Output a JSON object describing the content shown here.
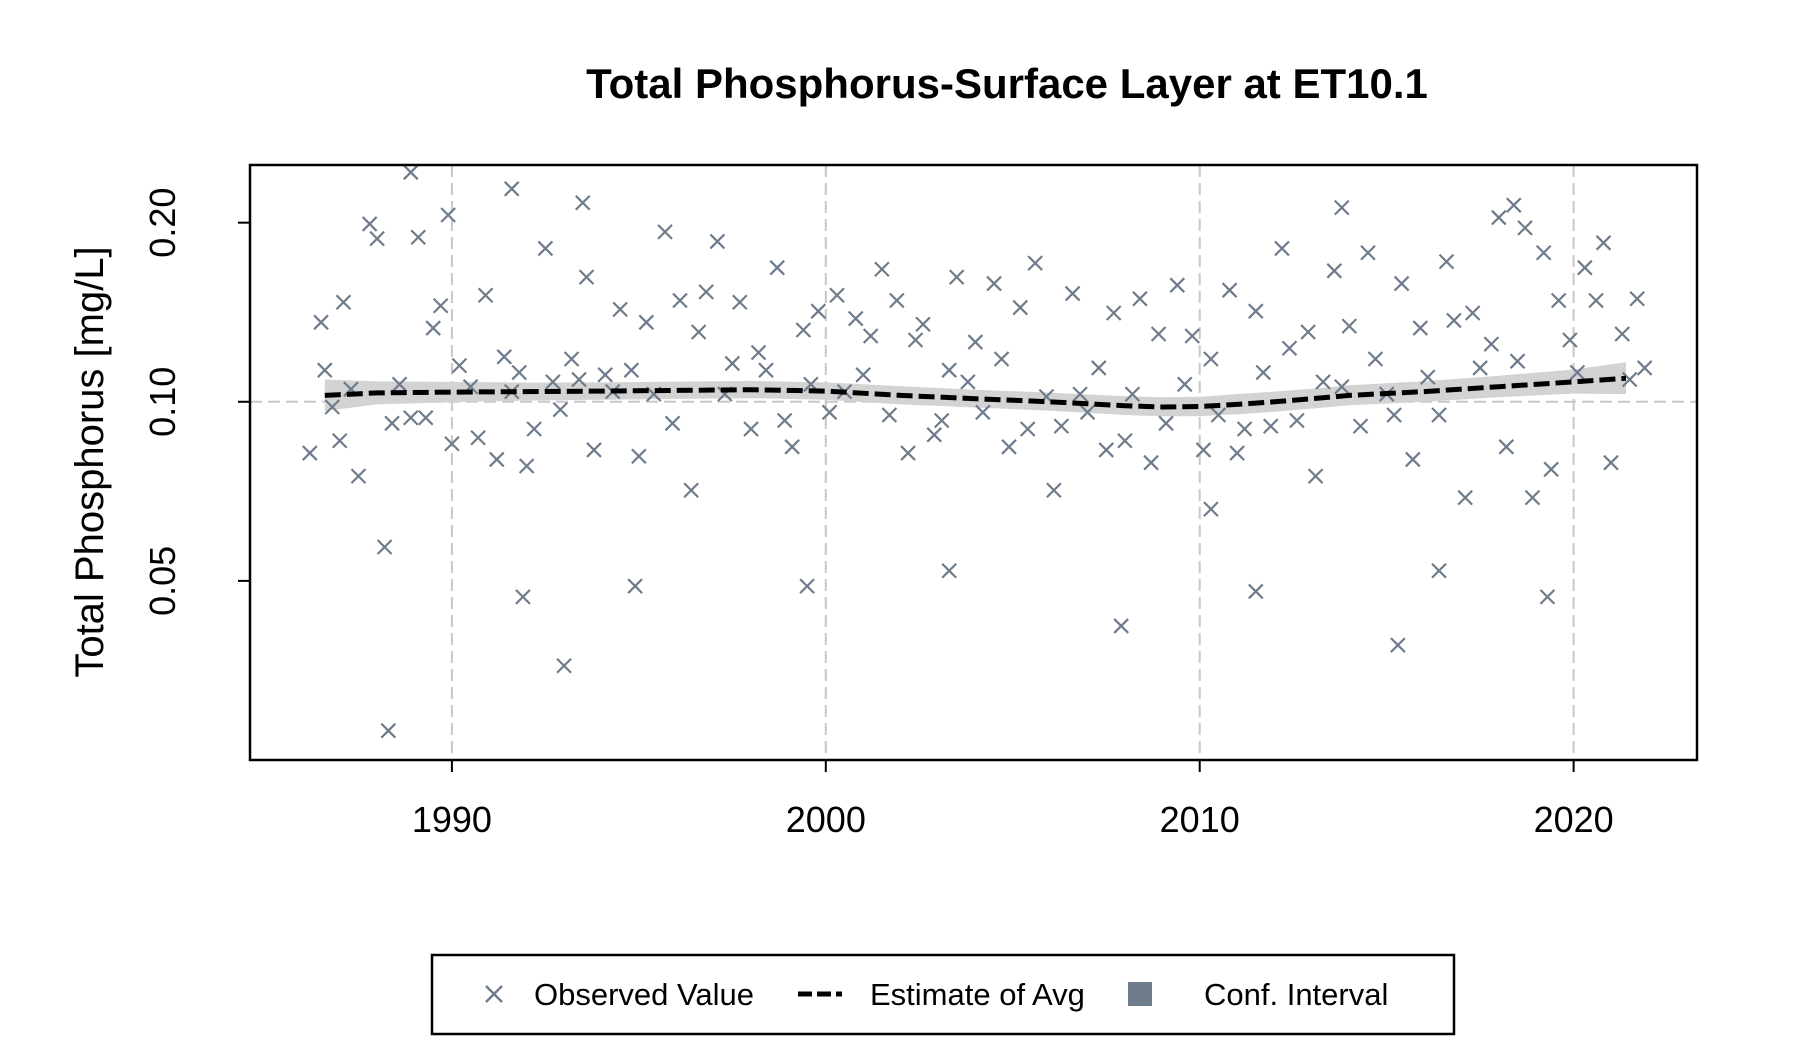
{
  "chart_data": {
    "type": "scatter",
    "title": "Total Phosphorus-Surface Layer at ET10.1",
    "xlabel": "",
    "ylabel": "Total Phosphorus [mg/L]",
    "xlim": [
      1984.6,
      2023.3
    ],
    "ylim": [
      0.025,
      0.25
    ],
    "y_scale": "log",
    "x_ticks": [
      1990,
      2000,
      2010,
      2020
    ],
    "x_tick_labels": [
      "1990",
      "2000",
      "2010",
      "2020"
    ],
    "y_ticks": [
      0.05,
      0.1,
      0.2
    ],
    "y_tick_labels": [
      "0.05",
      "0.10",
      "0.20"
    ],
    "grid": true,
    "reference_line_y": 0.1,
    "legend_position": "bottom",
    "colors": {
      "observed": "#6e7b8b",
      "estimate": "#000000",
      "ci": "#d3d3d3",
      "ci_legend": "#6e7b8b",
      "grid": "#c8c8c8"
    },
    "series": [
      {
        "name": "Observed Value",
        "type": "scatter",
        "x": [
          1986.2,
          1986.5,
          1986.6,
          1986.8,
          1987.0,
          1987.1,
          1987.3,
          1987.5,
          1987.8,
          1988.0,
          1988.2,
          1988.4,
          1988.6,
          1988.9,
          1989.1,
          1989.3,
          1989.5,
          1989.7,
          1990.0,
          1990.2,
          1990.5,
          1990.7,
          1990.9,
          1991.2,
          1991.4,
          1991.6,
          1991.8,
          1992.0,
          1992.2,
          1992.5,
          1992.7,
          1992.9,
          1993.2,
          1993.4,
          1993.6,
          1993.8,
          1994.1,
          1994.3,
          1994.5,
          1994.8,
          1995.0,
          1995.2,
          1995.4,
          1995.7,
          1995.9,
          1996.1,
          1996.4,
          1996.6,
          1996.8,
          1997.1,
          1997.3,
          1997.5,
          1997.7,
          1998.0,
          1998.2,
          1998.4,
          1998.7,
          1998.9,
          1999.1,
          1999.4,
          1999.6,
          1999.8,
          2000.1,
          2000.3,
          2000.5,
          2000.8,
          2001.0,
          2001.2,
          2001.5,
          2001.7,
          2001.9,
          2002.2,
          2002.4,
          2002.6,
          2002.9,
          2003.1,
          2003.3,
          2003.5,
          2003.8,
          2004.0,
          2004.2,
          2004.5,
          2004.7,
          2004.9,
          2005.2,
          2005.4,
          2005.6,
          2005.9,
          2006.1,
          2006.3,
          2006.6,
          2006.8,
          2007.0,
          2007.3,
          2007.5,
          2007.7,
          2008.0,
          2008.2,
          2008.4,
          2008.7,
          2008.9,
          2009.1,
          2009.4,
          2009.6,
          2009.8,
          2010.1,
          2010.3,
          2010.5,
          2010.8,
          2011.0,
          2011.2,
          2011.5,
          2011.7,
          2011.9,
          2012.2,
          2012.4,
          2012.6,
          2012.9,
          2013.1,
          2013.3,
          2013.6,
          2013.8,
          2014.0,
          2014.3,
          2014.5,
          2014.7,
          2015.0,
          2015.2,
          2015.4,
          2015.7,
          2015.9,
          2016.1,
          2016.4,
          2016.6,
          2016.8,
          2017.1,
          2017.3,
          2017.5,
          2017.8,
          2018.0,
          2018.2,
          2018.5,
          2018.7,
          2018.9,
          2019.2,
          2019.4,
          2019.6,
          2019.9,
          2020.1,
          2020.3,
          2020.6,
          2020.8,
          2021.0,
          2021.3,
          2021.5,
          2021.7,
          2021.9,
          1988.3,
          1991.9,
          1993.0,
          2007.9,
          2015.3,
          1988.9,
          1991.6,
          1993.5,
          2013.8,
          2018.4,
          1989.9,
          1994.9,
          1999.5,
          2003.3,
          2010.3,
          2011.5,
          2016.4,
          2019.3
        ],
        "y": [
          0.082,
          0.136,
          0.113,
          0.098,
          0.086,
          0.147,
          0.105,
          0.075,
          0.199,
          0.188,
          0.057,
          0.092,
          0.107,
          0.094,
          0.189,
          0.094,
          0.133,
          0.145,
          0.085,
          0.115,
          0.106,
          0.087,
          0.151,
          0.08,
          0.119,
          0.104,
          0.112,
          0.078,
          0.09,
          0.181,
          0.108,
          0.097,
          0.118,
          0.109,
          0.162,
          0.083,
          0.111,
          0.104,
          0.143,
          0.113,
          0.081,
          0.136,
          0.103,
          0.193,
          0.092,
          0.148,
          0.071,
          0.131,
          0.153,
          0.186,
          0.103,
          0.116,
          0.147,
          0.09,
          0.121,
          0.113,
          0.168,
          0.093,
          0.084,
          0.132,
          0.107,
          0.142,
          0.096,
          0.151,
          0.104,
          0.138,
          0.111,
          0.129,
          0.167,
          0.095,
          0.148,
          0.082,
          0.127,
          0.135,
          0.088,
          0.093,
          0.113,
          0.162,
          0.108,
          0.126,
          0.096,
          0.158,
          0.118,
          0.084,
          0.144,
          0.09,
          0.171,
          0.102,
          0.071,
          0.091,
          0.152,
          0.103,
          0.096,
          0.114,
          0.083,
          0.141,
          0.086,
          0.103,
          0.149,
          0.079,
          0.13,
          0.092,
          0.157,
          0.107,
          0.129,
          0.083,
          0.118,
          0.095,
          0.154,
          0.082,
          0.09,
          0.142,
          0.112,
          0.091,
          0.181,
          0.123,
          0.093,
          0.131,
          0.075,
          0.108,
          0.166,
          0.106,
          0.134,
          0.091,
          0.178,
          0.118,
          0.103,
          0.095,
          0.158,
          0.08,
          0.133,
          0.11,
          0.095,
          0.172,
          0.137,
          0.069,
          0.141,
          0.114,
          0.125,
          0.204,
          0.084,
          0.117,
          0.196,
          0.069,
          0.178,
          0.077,
          0.148,
          0.127,
          0.112,
          0.168,
          0.148,
          0.185,
          0.079,
          0.13,
          0.109,
          0.149,
          0.114,
          0.028,
          0.047,
          0.036,
          0.042,
          0.039,
          0.243,
          0.228,
          0.216,
          0.212,
          0.214,
          0.206,
          0.049,
          0.049,
          0.052,
          0.066,
          0.048,
          0.052,
          0.047
        ]
      },
      {
        "name": "Estimate of Avg",
        "type": "line",
        "x": [
          1986.6,
          1988.0,
          1990.0,
          1992.0,
          1994.0,
          1996.0,
          1998.0,
          2000.0,
          2002.0,
          2004.0,
          2006.0,
          2008.0,
          2009.0,
          2010.0,
          2011.0,
          2012.0,
          2013.0,
          2014.0,
          2016.0,
          2018.0,
          2020.0,
          2021.4
        ],
        "y": [
          0.1025,
          0.1035,
          0.1038,
          0.104,
          0.1042,
          0.1045,
          0.1048,
          0.1042,
          0.1025,
          0.1012,
          0.1,
          0.0985,
          0.098,
          0.0982,
          0.099,
          0.1,
          0.1012,
          0.1025,
          0.104,
          0.106,
          0.108,
          0.1095
        ]
      },
      {
        "name": "Conf. Interval",
        "type": "band",
        "x": [
          1986.6,
          1988.0,
          1990.0,
          1992.0,
          1994.0,
          1996.0,
          1998.0,
          2000.0,
          2002.0,
          2004.0,
          2006.0,
          2008.0,
          2009.0,
          2010.0,
          2011.0,
          2012.0,
          2013.0,
          2014.0,
          2016.0,
          2018.0,
          2020.0,
          2021.4
        ],
        "lower": [
          0.0965,
          0.099,
          0.0998,
          0.1005,
          0.1008,
          0.1011,
          0.1014,
          0.1008,
          0.099,
          0.0978,
          0.0966,
          0.095,
          0.0945,
          0.0946,
          0.0953,
          0.0962,
          0.0974,
          0.0987,
          0.1,
          0.1018,
          0.1032,
          0.103
        ],
        "upper": [
          0.109,
          0.1082,
          0.108,
          0.1077,
          0.1078,
          0.1081,
          0.1084,
          0.1078,
          0.1062,
          0.1048,
          0.1036,
          0.1022,
          0.1018,
          0.102,
          0.103,
          0.104,
          0.1052,
          0.1066,
          0.1083,
          0.1106,
          0.1133,
          0.1165
        ]
      }
    ],
    "legend": [
      {
        "label": "Observed Value",
        "symbol": "cross-icon"
      },
      {
        "label": "Estimate of Avg",
        "symbol": "dashed-line-icon"
      },
      {
        "label": "Conf. Interval",
        "symbol": "filled-square-icon"
      }
    ]
  }
}
